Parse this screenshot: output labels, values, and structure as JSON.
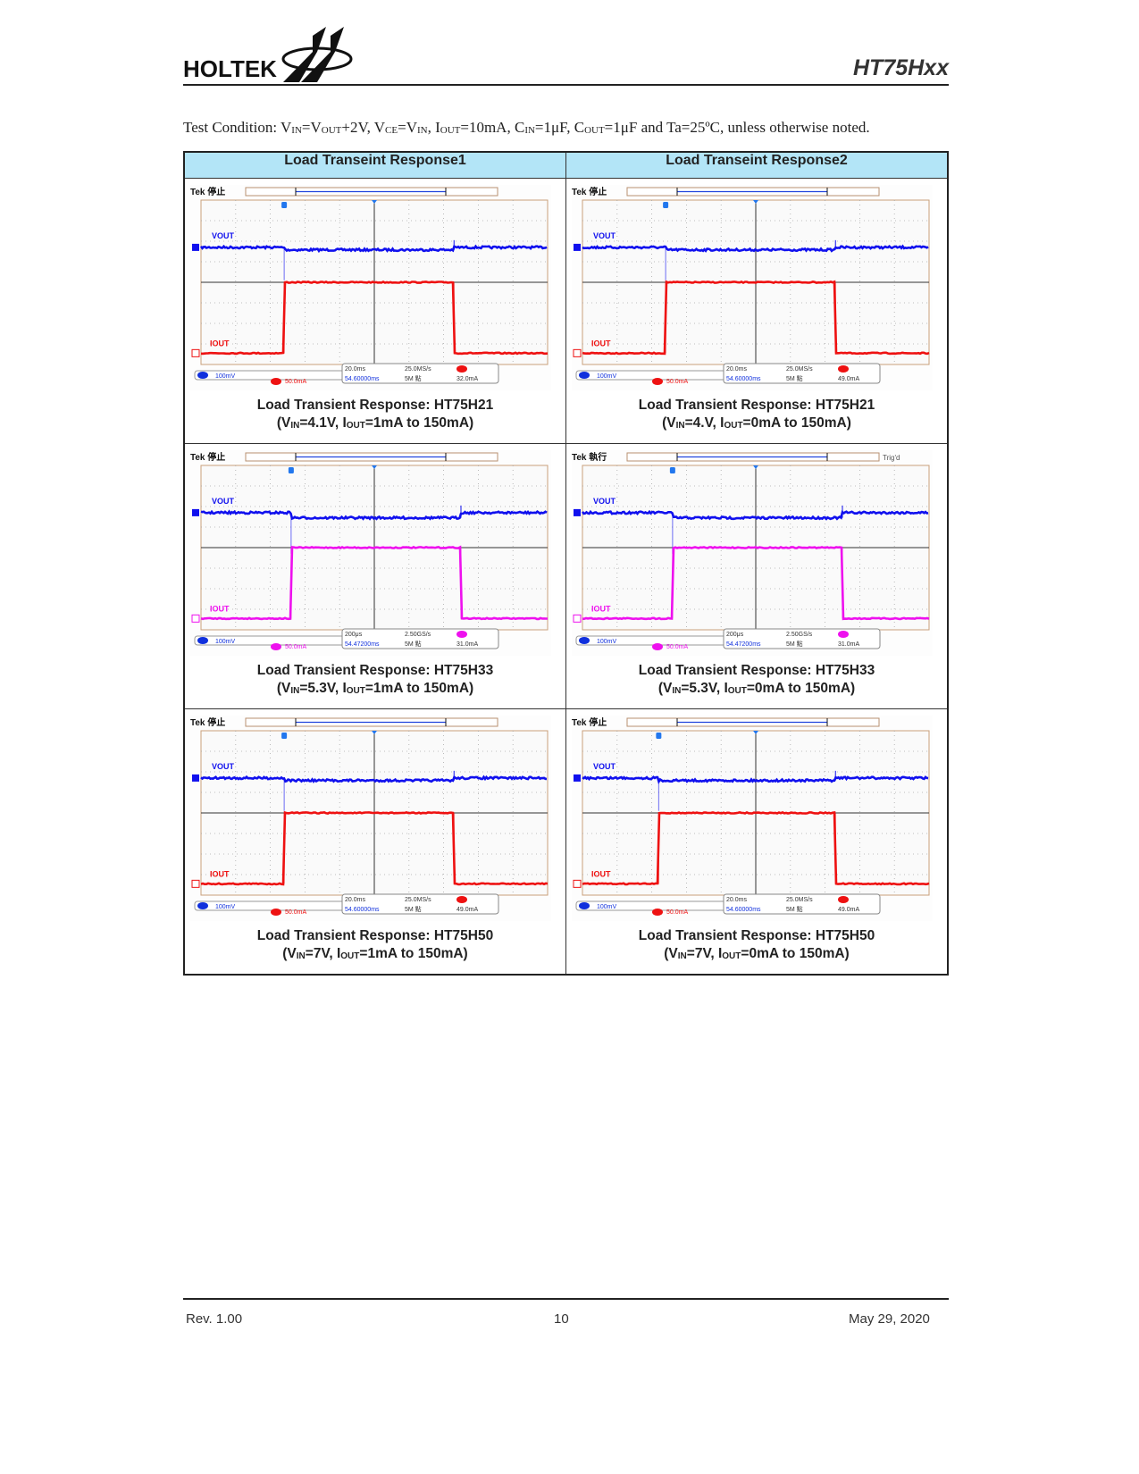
{
  "header": {
    "logo_text": "HOLTEK",
    "doc_id": "HT75Hxx"
  },
  "test_condition": {
    "prefix": "Test Condition: V",
    "p1": "IN",
    "t1": "=V",
    "p2": "OUT",
    "t2": "+2V, V",
    "p3": "CE",
    "t3": "=V",
    "p4": "IN",
    "t4": ", I",
    "p5": "OUT",
    "t5": "=10mA, C",
    "p6": "IN",
    "t6": "=1μF, C",
    "p7": "OUT",
    "t7": "=1μF and Ta=25ºC, unless otherwise noted."
  },
  "table": {
    "columns": [
      "Load Transeint Response1",
      "Load Transeint Response2"
    ]
  },
  "panels": [
    {
      "title": "Load Transient Response: HT75H21",
      "vin": "=4.1V, I",
      "iout": "=1mA to 150mA)",
      "status": "Tek 停止",
      "trigd": "",
      "ch1_scale": "100mV",
      "ch2_num": "2",
      "ch2_scale": "50.0mA",
      "timebase": "20.0ms",
      "sample_rate": "25.0MS/s",
      "trig_pos": "54.60000ms",
      "record": "5M 點",
      "trig_level": "32.0mA",
      "vout_label": "VOUT",
      "iout_label": "IOUT",
      "current_color": "#ee1111",
      "step_on_div": 2.4,
      "step_off_div": 7.3,
      "overshoot": false
    },
    {
      "title": "Load Transient Response: HT75H21",
      "vin": "=4.V, I",
      "iout": "=0mA to 150mA)",
      "status": "Tek 停止",
      "trigd": "",
      "ch1_scale": "100mV",
      "ch2_num": "2",
      "ch2_scale": "50.0mA",
      "timebase": "20.0ms",
      "sample_rate": "25.0MS/s",
      "trig_pos": "54.60000ms",
      "record": "5M 點",
      "trig_level": "49.0mA",
      "vout_label": "VOUT",
      "iout_label": "IOUT",
      "current_color": "#ee1111",
      "step_on_div": 2.4,
      "step_off_div": 7.3,
      "overshoot": false
    },
    {
      "title": "Load Transient Response: HT75H33",
      "vin": "=5.3V, I",
      "iout": "=1mA to 150mA)",
      "status": "Tek 停止",
      "trigd": "",
      "ch1_scale": "100mV",
      "ch2_num": "4",
      "ch2_scale": "50.0mA",
      "timebase": "200μs",
      "sample_rate": "2.50GS/s",
      "trig_pos": "54.47200ms",
      "record": "5M 點",
      "trig_level": "31.0mA",
      "vout_label": "VOUT",
      "iout_label": "IOUT",
      "current_color": "#ee11ee",
      "step_on_div": 2.6,
      "step_off_div": 7.5,
      "overshoot": true
    },
    {
      "title": "Load Transient Response: HT75H33",
      "vin": "=5.3V, I",
      "iout": "=0mA to 150mA)",
      "status": "Tek 執行",
      "trigd": "Trig'd",
      "ch1_scale": "100mV",
      "ch2_num": "4",
      "ch2_scale": "50.0mA",
      "timebase": "200μs",
      "sample_rate": "2.50GS/s",
      "trig_pos": "54.47200ms",
      "record": "5M 點",
      "trig_level": "31.0mA",
      "vout_label": "VOUT",
      "iout_label": "IOUT",
      "current_color": "#ee11ee",
      "step_on_div": 2.6,
      "step_off_div": 7.5,
      "overshoot": true
    },
    {
      "title": "Load Transient Response: HT75H50",
      "vin": "=7V, I",
      "iout": "=1mA to 150mA)",
      "status": "Tek 停止",
      "trigd": "",
      "ch1_scale": "100mV",
      "ch2_num": "2",
      "ch2_scale": "50.0mA",
      "timebase": "20.0ms",
      "sample_rate": "25.0MS/s",
      "trig_pos": "54.60000ms",
      "record": "5M 點",
      "trig_level": "49.0mA",
      "vout_label": "VOUT",
      "iout_label": "IOUT",
      "current_color": "#ee1111",
      "step_on_div": 2.4,
      "step_off_div": 7.3,
      "overshoot": false
    },
    {
      "title": "Load Transient Response: HT75H50",
      "vin": "=7V, I",
      "iout": "=0mA to 150mA)",
      "status": "Tek 停止",
      "trigd": "",
      "ch1_scale": "100mV",
      "ch2_num": "2",
      "ch2_scale": "50.0mA",
      "timebase": "20.0ms",
      "sample_rate": "25.0MS/s",
      "trig_pos": "54.60000ms",
      "record": "5M 點",
      "trig_level": "49.0mA",
      "vout_label": "VOUT",
      "iout_label": "IOUT",
      "current_color": "#ee1111",
      "step_on_div": 2.2,
      "step_off_div": 7.3,
      "overshoot": false
    }
  ],
  "caption_common": {
    "open": "(V",
    "in_sub": "IN",
    "out_sub": "OUT"
  },
  "footer": {
    "rev": "Rev. 1.00",
    "page": "10",
    "date": "May 29, 2020"
  },
  "colors": {
    "header_bg": "#b3e5f7",
    "vout": "#1010ee"
  }
}
